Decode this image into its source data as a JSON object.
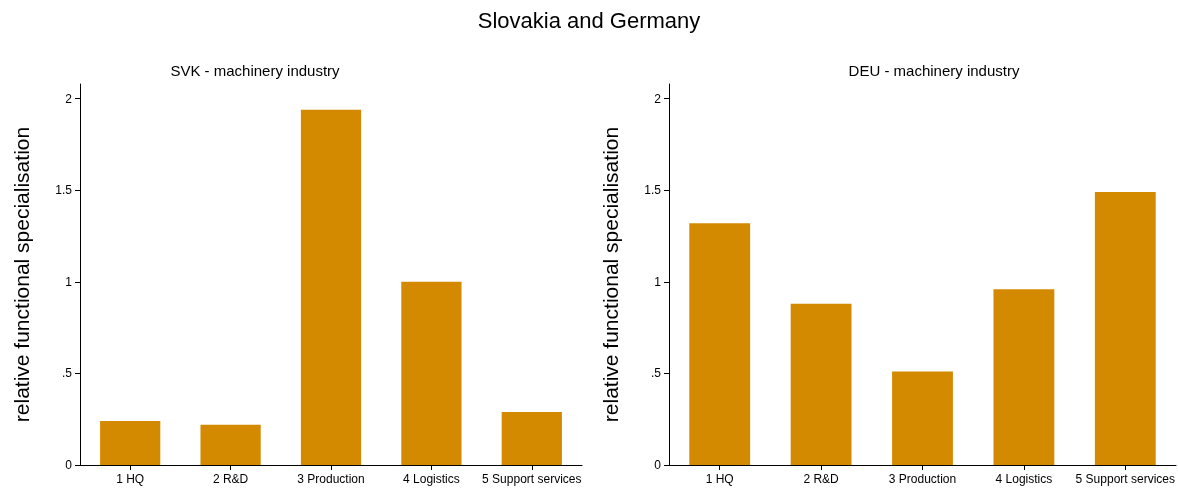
{
  "chart_data": [
    {
      "type": "bar",
      "title": "Slovakia and Germany",
      "subtitle": "SVK - machinery industry",
      "ylabel": "relative functional specialisation",
      "categories": [
        "1 HQ",
        "2 R&D",
        "3 Production",
        "4 Logistics",
        "5 Support services"
      ],
      "values": [
        0.24,
        0.22,
        1.94,
        1.0,
        0.29
      ],
      "color": "#d48a00",
      "ylim": [
        0,
        2.08
      ],
      "yticks": [
        0,
        {
          "value": 0.5,
          "label": ".5"
        },
        1,
        1.5,
        2
      ]
    },
    {
      "type": "bar",
      "subtitle": "DEU - machinery industry",
      "ylabel": "relative functional specialisation",
      "categories": [
        "1 HQ",
        "2 R&D",
        "3 Production",
        "4 Logistics",
        "5 Support services"
      ],
      "values": [
        1.32,
        0.88,
        0.51,
        0.96,
        1.49
      ],
      "color": "#d48a00",
      "ylim": [
        0,
        2.08
      ],
      "yticks": [
        0,
        {
          "value": 0.5,
          "label": ".5"
        },
        1,
        1.5,
        2
      ]
    }
  ]
}
